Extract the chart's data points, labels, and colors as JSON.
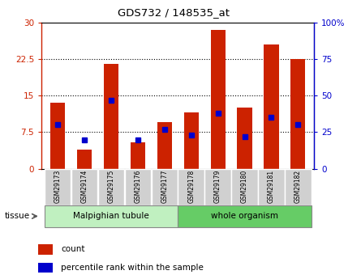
{
  "title": "GDS732 / 148535_at",
  "samples": [
    "GSM29173",
    "GSM29174",
    "GSM29175",
    "GSM29176",
    "GSM29177",
    "GSM29178",
    "GSM29179",
    "GSM29180",
    "GSM29181",
    "GSM29182"
  ],
  "counts": [
    13.5,
    4.0,
    21.5,
    5.5,
    9.5,
    11.5,
    28.5,
    12.5,
    25.5,
    22.5
  ],
  "percentiles": [
    30,
    20,
    47,
    20,
    27,
    23,
    38,
    22,
    35,
    30
  ],
  "groups": [
    {
      "label": "Malpighian tubule",
      "start": 0,
      "end": 4
    },
    {
      "label": "whole organism",
      "start": 5,
      "end": 9
    }
  ],
  "ylim_left": [
    0,
    30
  ],
  "ylim_right": [
    0,
    100
  ],
  "yticks_left": [
    0,
    7.5,
    15,
    22.5,
    30
  ],
  "ytick_labels_left": [
    "0",
    "7.5",
    "15",
    "22.5",
    "30"
  ],
  "yticks_right": [
    0,
    25,
    50,
    75,
    100
  ],
  "ytick_labels_right": [
    "0",
    "25",
    "50",
    "75",
    "100%"
  ],
  "bar_color": "#cc2200",
  "dot_color": "#0000cc",
  "bar_width": 0.55,
  "group_bg_color_1": "#c0f0c0",
  "group_bg_color_2": "#66cc66",
  "tick_bg_color": "#d0d0d0",
  "legend_count_label": "count",
  "legend_pct_label": "percentile rank within the sample",
  "border_color": "#888888"
}
